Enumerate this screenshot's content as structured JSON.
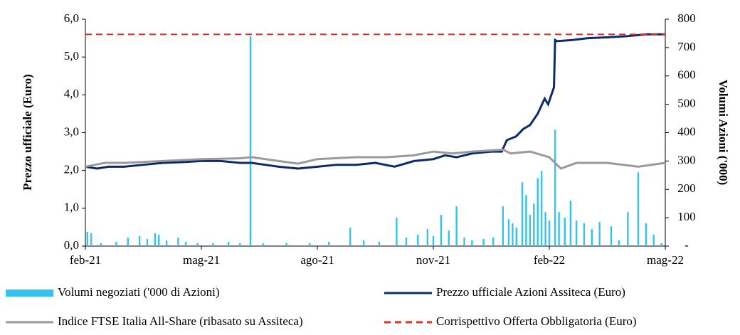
{
  "chart_data": {
    "type": "line",
    "ylabel": "Prezzo ufficiale (Euro)",
    "y2label": "Volumi Azioni ('000)",
    "xlim": [
      0,
      15
    ],
    "xticks": [
      {
        "value": 0,
        "label": "feb-21"
      },
      {
        "value": 3,
        "label": "mag-21"
      },
      {
        "value": 6,
        "label": "ago-21"
      },
      {
        "value": 9,
        "label": "nov-21"
      },
      {
        "value": 12,
        "label": "feb-22"
      },
      {
        "value": 15,
        "label": "mag-22"
      }
    ],
    "ylim": [
      0,
      6
    ],
    "yticks": [
      {
        "value": 0,
        "label": "0,0"
      },
      {
        "value": 1,
        "label": "1,0"
      },
      {
        "value": 2,
        "label": "2,0"
      },
      {
        "value": 3,
        "label": "3,0"
      },
      {
        "value": 4,
        "label": "4,0"
      },
      {
        "value": 5,
        "label": "5,0"
      },
      {
        "value": 6,
        "label": "6,0"
      }
    ],
    "y2lim": [
      0,
      800
    ],
    "y2ticks": [
      {
        "value": 0,
        "label": "-"
      },
      100,
      200,
      300,
      400,
      500,
      600,
      700,
      800
    ],
    "series": [
      {
        "name": "Volumi negoziati ('000 di Azioni)",
        "type": "bar",
        "axis": "y2",
        "color": "#33c3ef",
        "x": [
          0.05,
          0.15,
          0.4,
          0.8,
          1.1,
          1.4,
          1.6,
          1.8,
          1.9,
          2.1,
          2.4,
          2.6,
          2.9,
          3.3,
          3.7,
          4.0,
          4.27,
          4.6,
          5.2,
          5.8,
          6.3,
          6.85,
          7.2,
          7.6,
          8.05,
          8.3,
          8.6,
          8.85,
          9.0,
          9.2,
          9.4,
          9.6,
          9.8,
          10.0,
          10.3,
          10.55,
          10.8,
          10.95,
          11.05,
          11.15,
          11.3,
          11.4,
          11.5,
          11.6,
          11.7,
          11.8,
          11.9,
          12.0,
          12.15,
          12.25,
          12.4,
          12.55,
          12.7,
          12.9,
          13.1,
          13.3,
          13.6,
          13.8,
          14.03,
          14.3,
          14.5,
          14.7,
          14.9
        ],
        "values": [
          50,
          45,
          10,
          15,
          30,
          35,
          25,
          45,
          40,
          20,
          30,
          15,
          10,
          10,
          15,
          10,
          740,
          10,
          10,
          10,
          15,
          65,
          20,
          15,
          100,
          30,
          40,
          60,
          35,
          110,
          55,
          140,
          30,
          20,
          25,
          30,
          140,
          95,
          80,
          65,
          225,
          180,
          110,
          150,
          240,
          265,
          120,
          90,
          410,
          120,
          100,
          160,
          90,
          80,
          60,
          85,
          70,
          20,
          120,
          260,
          80,
          40,
          10
        ]
      },
      {
        "name": "Prezzo ufficiale Azioni Assiteca (Euro)",
        "type": "line",
        "color": "#0d2a6b",
        "x": [
          0,
          0.3,
          0.6,
          1,
          1.5,
          2,
          2.5,
          3,
          3.5,
          4,
          4.3,
          5,
          5.5,
          6,
          6.5,
          7,
          7.5,
          8,
          8.5,
          9,
          9.3,
          9.6,
          10,
          10.5,
          10.77,
          10.9,
          11.14,
          11.33,
          11.5,
          11.7,
          11.88,
          11.97,
          12.12,
          12.15,
          12.2,
          12.6,
          13,
          13.5,
          14,
          14.5,
          15
        ],
        "values": [
          2.1,
          2.05,
          2.1,
          2.1,
          2.15,
          2.2,
          2.22,
          2.25,
          2.25,
          2.2,
          2.2,
          2.1,
          2.05,
          2.1,
          2.15,
          2.15,
          2.2,
          2.1,
          2.25,
          2.3,
          2.4,
          2.35,
          2.45,
          2.5,
          2.5,
          2.8,
          2.9,
          3.1,
          3.2,
          3.5,
          3.9,
          3.75,
          4.2,
          5.45,
          5.42,
          5.45,
          5.5,
          5.52,
          5.55,
          5.6,
          5.6
        ]
      },
      {
        "name": "Indice FTSE Italia All-Share (ribasato su Assiteca)",
        "type": "line",
        "color": "#9a9a9a",
        "x": [
          0,
          0.5,
          1,
          2,
          3,
          4,
          4.3,
          5,
          5.5,
          6,
          7,
          7.8,
          8.5,
          9,
          9.5,
          10,
          10.8,
          11,
          11.5,
          12,
          12.3,
          12.7,
          13.5,
          14.3,
          15
        ],
        "values": [
          2.1,
          2.2,
          2.2,
          2.25,
          2.3,
          2.32,
          2.35,
          2.25,
          2.18,
          2.3,
          2.35,
          2.35,
          2.4,
          2.5,
          2.45,
          2.5,
          2.55,
          2.45,
          2.5,
          2.35,
          2.05,
          2.2,
          2.2,
          2.1,
          2.2
        ]
      },
      {
        "name": "Corrispettivo Offerta Obbligatoria (Euro)",
        "type": "hline",
        "color": "#e0302a",
        "value": 5.6
      }
    ]
  }
}
